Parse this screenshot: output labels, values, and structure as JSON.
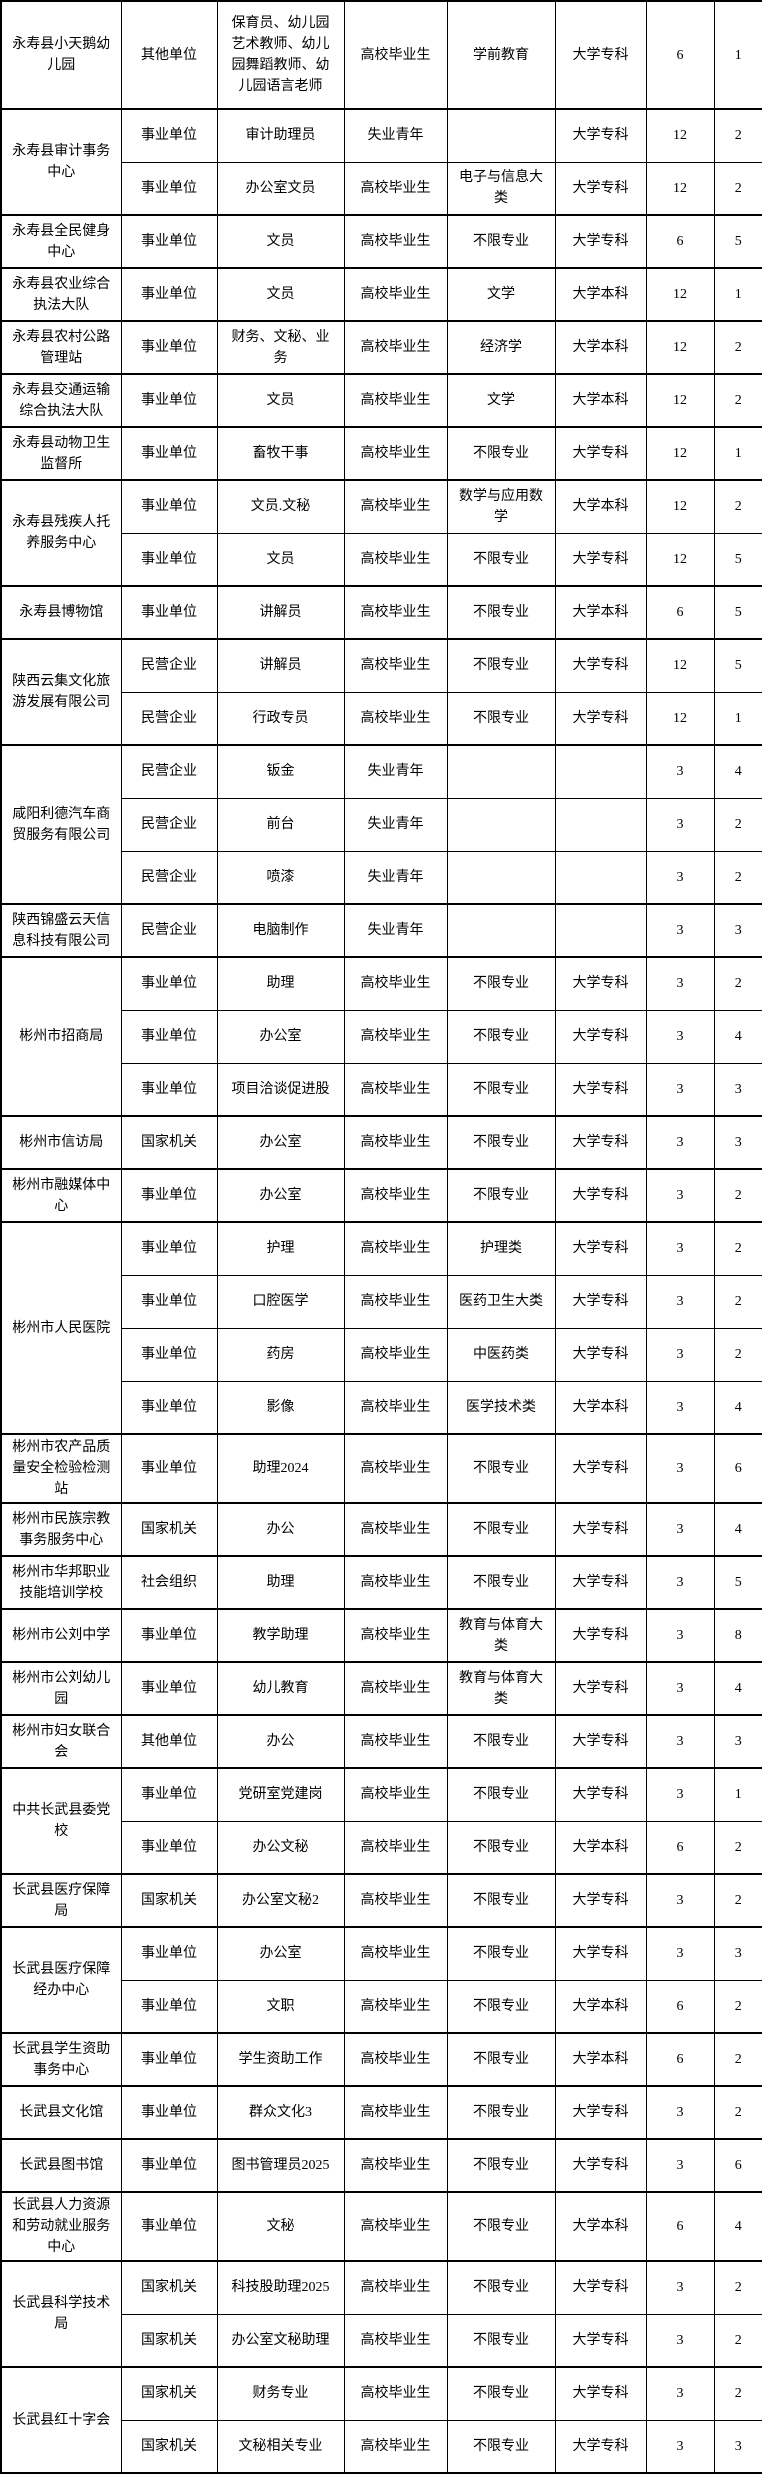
{
  "page": {
    "background_color": "#ffffff",
    "border_color": "#000000",
    "text_color": "#000000"
  },
  "orgs": [
    {
      "name": "永寿县小天鹅幼儿园",
      "rows": [
        {
          "type": "其他单位",
          "position": "保育员、幼儿园艺术教师、幼儿园舞蹈教师、幼儿园语言老师",
          "target": "高校毕业生",
          "major": "学前教育",
          "education": "大学专科",
          "num1": "6",
          "num2": "1"
        }
      ]
    },
    {
      "name": "永寿县审计事务中心",
      "rows": [
        {
          "type": "事业单位",
          "position": "审计助理员",
          "target": "失业青年",
          "major": "",
          "education": "大学专科",
          "num1": "12",
          "num2": "2"
        },
        {
          "type": "事业单位",
          "position": "办公室文员",
          "target": "高校毕业生",
          "major": "电子与信息大类",
          "education": "大学专科",
          "num1": "12",
          "num2": "2"
        }
      ]
    },
    {
      "name": "永寿县全民健身中心",
      "rows": [
        {
          "type": "事业单位",
          "position": "文员",
          "target": "高校毕业生",
          "major": "不限专业",
          "education": "大学专科",
          "num1": "6",
          "num2": "5"
        }
      ]
    },
    {
      "name": "永寿县农业综合执法大队",
      "rows": [
        {
          "type": "事业单位",
          "position": "文员",
          "target": "高校毕业生",
          "major": "文学",
          "education": "大学本科",
          "num1": "12",
          "num2": "1"
        }
      ]
    },
    {
      "name": "永寿县农村公路管理站",
      "rows": [
        {
          "type": "事业单位",
          "position": "财务、文秘、业务",
          "target": "高校毕业生",
          "major": "经济学",
          "education": "大学本科",
          "num1": "12",
          "num2": "2"
        }
      ]
    },
    {
      "name": "永寿县交通运输综合执法大队",
      "rows": [
        {
          "type": "事业单位",
          "position": "文员",
          "target": "高校毕业生",
          "major": "文学",
          "education": "大学本科",
          "num1": "12",
          "num2": "2"
        }
      ]
    },
    {
      "name": "永寿县动物卫生监督所",
      "rows": [
        {
          "type": "事业单位",
          "position": "畜牧干事",
          "target": "高校毕业生",
          "major": "不限专业",
          "education": "大学专科",
          "num1": "12",
          "num2": "1"
        }
      ]
    },
    {
      "name": "永寿县残疾人托养服务中心",
      "rows": [
        {
          "type": "事业单位",
          "position": "文员.文秘",
          "target": "高校毕业生",
          "major": "数学与应用数学",
          "education": "大学本科",
          "num1": "12",
          "num2": "2"
        },
        {
          "type": "事业单位",
          "position": "文员",
          "target": "高校毕业生",
          "major": "不限专业",
          "education": "大学专科",
          "num1": "12",
          "num2": "5"
        }
      ]
    },
    {
      "name": "永寿县博物馆",
      "rows": [
        {
          "type": "事业单位",
          "position": "讲解员",
          "target": "高校毕业生",
          "major": "不限专业",
          "education": "大学本科",
          "num1": "6",
          "num2": "5"
        }
      ]
    },
    {
      "name": "陕西云集文化旅游发展有限公司",
      "rows": [
        {
          "type": "民营企业",
          "position": "讲解员",
          "target": "高校毕业生",
          "major": "不限专业",
          "education": "大学专科",
          "num1": "12",
          "num2": "5"
        },
        {
          "type": "民营企业",
          "position": "行政专员",
          "target": "高校毕业生",
          "major": "不限专业",
          "education": "大学专科",
          "num1": "12",
          "num2": "1"
        }
      ]
    },
    {
      "name": "咸阳利德汽车商贸服务有限公司",
      "rows": [
        {
          "type": "民营企业",
          "position": "钣金",
          "target": "失业青年",
          "major": "",
          "education": "",
          "num1": "3",
          "num2": "4"
        },
        {
          "type": "民营企业",
          "position": "前台",
          "target": "失业青年",
          "major": "",
          "education": "",
          "num1": "3",
          "num2": "2"
        },
        {
          "type": "民营企业",
          "position": "喷漆",
          "target": "失业青年",
          "major": "",
          "education": "",
          "num1": "3",
          "num2": "2"
        }
      ]
    },
    {
      "name": "陕西锦盛云天信息科技有限公司",
      "rows": [
        {
          "type": "民营企业",
          "position": "电脑制作",
          "target": "失业青年",
          "major": "",
          "education": "",
          "num1": "3",
          "num2": "3"
        }
      ]
    },
    {
      "name": "彬州市招商局",
      "rows": [
        {
          "type": "事业单位",
          "position": "助理",
          "target": "高校毕业生",
          "major": "不限专业",
          "education": "大学专科",
          "num1": "3",
          "num2": "2"
        },
        {
          "type": "事业单位",
          "position": "办公室",
          "target": "高校毕业生",
          "major": "不限专业",
          "education": "大学专科",
          "num1": "3",
          "num2": "4"
        },
        {
          "type": "事业单位",
          "position": "项目洽谈促进股",
          "target": "高校毕业生",
          "major": "不限专业",
          "education": "大学专科",
          "num1": "3",
          "num2": "3"
        }
      ]
    },
    {
      "name": "彬州市信访局",
      "rows": [
        {
          "type": "国家机关",
          "position": "办公室",
          "target": "高校毕业生",
          "major": "不限专业",
          "education": "大学专科",
          "num1": "3",
          "num2": "3"
        }
      ]
    },
    {
      "name": "彬州市融媒体中心",
      "rows": [
        {
          "type": "事业单位",
          "position": "办公室",
          "target": "高校毕业生",
          "major": "不限专业",
          "education": "大学专科",
          "num1": "3",
          "num2": "2"
        }
      ]
    },
    {
      "name": "彬州市人民医院",
      "rows": [
        {
          "type": "事业单位",
          "position": "护理",
          "target": "高校毕业生",
          "major": "护理类",
          "education": "大学专科",
          "num1": "3",
          "num2": "2"
        },
        {
          "type": "事业单位",
          "position": "口腔医学",
          "target": "高校毕业生",
          "major": "医药卫生大类",
          "education": "大学专科",
          "num1": "3",
          "num2": "2"
        },
        {
          "type": "事业单位",
          "position": "药房",
          "target": "高校毕业生",
          "major": "中医药类",
          "education": "大学专科",
          "num1": "3",
          "num2": "2"
        },
        {
          "type": "事业单位",
          "position": "影像",
          "target": "高校毕业生",
          "major": "医学技术类",
          "education": "大学本科",
          "num1": "3",
          "num2": "4"
        }
      ]
    },
    {
      "name": "彬州市农产品质量安全检验检测站",
      "rows": [
        {
          "type": "事业单位",
          "position": "助理2024",
          "target": "高校毕业生",
          "major": "不限专业",
          "education": "大学专科",
          "num1": "3",
          "num2": "6"
        }
      ]
    },
    {
      "name": "彬州市民族宗教事务服务中心",
      "rows": [
        {
          "type": "国家机关",
          "position": "办公",
          "target": "高校毕业生",
          "major": "不限专业",
          "education": "大学专科",
          "num1": "3",
          "num2": "4"
        }
      ]
    },
    {
      "name": "彬州市华邦职业技能培训学校",
      "rows": [
        {
          "type": "社会组织",
          "position": "助理",
          "target": "高校毕业生",
          "major": "不限专业",
          "education": "大学专科",
          "num1": "3",
          "num2": "5"
        }
      ]
    },
    {
      "name": "彬州市公刘中学",
      "rows": [
        {
          "type": "事业单位",
          "position": "教学助理",
          "target": "高校毕业生",
          "major": "教育与体育大类",
          "education": "大学专科",
          "num1": "3",
          "num2": "8"
        }
      ]
    },
    {
      "name": "彬州市公刘幼儿园",
      "rows": [
        {
          "type": "事业单位",
          "position": "幼儿教育",
          "target": "高校毕业生",
          "major": "教育与体育大类",
          "education": "大学专科",
          "num1": "3",
          "num2": "4"
        }
      ]
    },
    {
      "name": "彬州市妇女联合会",
      "rows": [
        {
          "type": "其他单位",
          "position": "办公",
          "target": "高校毕业生",
          "major": "不限专业",
          "education": "大学专科",
          "num1": "3",
          "num2": "3"
        }
      ]
    },
    {
      "name": "中共长武县委党校",
      "rows": [
        {
          "type": "事业单位",
          "position": "党研室党建岗",
          "target": "高校毕业生",
          "major": "不限专业",
          "education": "大学专科",
          "num1": "3",
          "num2": "1"
        },
        {
          "type": "事业单位",
          "position": "办公文秘",
          "target": "高校毕业生",
          "major": "不限专业",
          "education": "大学本科",
          "num1": "6",
          "num2": "2"
        }
      ]
    },
    {
      "name": "长武县医疗保障局",
      "rows": [
        {
          "type": "国家机关",
          "position": "办公室文秘2",
          "target": "高校毕业生",
          "major": "不限专业",
          "education": "大学专科",
          "num1": "3",
          "num2": "2"
        }
      ]
    },
    {
      "name": "长武县医疗保障经办中心",
      "rows": [
        {
          "type": "事业单位",
          "position": "办公室",
          "target": "高校毕业生",
          "major": "不限专业",
          "education": "大学专科",
          "num1": "3",
          "num2": "3"
        },
        {
          "type": "事业单位",
          "position": "文职",
          "target": "高校毕业生",
          "major": "不限专业",
          "education": "大学本科",
          "num1": "6",
          "num2": "2"
        }
      ]
    },
    {
      "name": "长武县学生资助事务中心",
      "rows": [
        {
          "type": "事业单位",
          "position": "学生资助工作",
          "target": "高校毕业生",
          "major": "不限专业",
          "education": "大学本科",
          "num1": "6",
          "num2": "2"
        }
      ]
    },
    {
      "name": "长武县文化馆",
      "rows": [
        {
          "type": "事业单位",
          "position": "群众文化3",
          "target": "高校毕业生",
          "major": "不限专业",
          "education": "大学专科",
          "num1": "3",
          "num2": "2"
        }
      ]
    },
    {
      "name": "长武县图书馆",
      "rows": [
        {
          "type": "事业单位",
          "position": "图书管理员2025",
          "target": "高校毕业生",
          "major": "不限专业",
          "education": "大学专科",
          "num1": "3",
          "num2": "6"
        }
      ]
    },
    {
      "name": "长武县人力资源和劳动就业服务中心",
      "rows": [
        {
          "type": "事业单位",
          "position": "文秘",
          "target": "高校毕业生",
          "major": "不限专业",
          "education": "大学本科",
          "num1": "6",
          "num2": "4"
        }
      ]
    },
    {
      "name": "长武县科学技术局",
      "rows": [
        {
          "type": "国家机关",
          "position": "科技股助理2025",
          "target": "高校毕业生",
          "major": "不限专业",
          "education": "大学专科",
          "num1": "3",
          "num2": "2"
        },
        {
          "type": "国家机关",
          "position": "办公室文秘助理",
          "target": "高校毕业生",
          "major": "不限专业",
          "education": "大学专科",
          "num1": "3",
          "num2": "2"
        }
      ]
    },
    {
      "name": "长武县红十字会",
      "rows": [
        {
          "type": "国家机关",
          "position": "财务专业",
          "target": "高校毕业生",
          "major": "不限专业",
          "education": "大学专科",
          "num1": "3",
          "num2": "2"
        },
        {
          "type": "国家机关",
          "position": "文秘相关专业",
          "target": "高校毕业生",
          "major": "不限专业",
          "education": "大学专科",
          "num1": "3",
          "num2": "3"
        }
      ]
    }
  ]
}
